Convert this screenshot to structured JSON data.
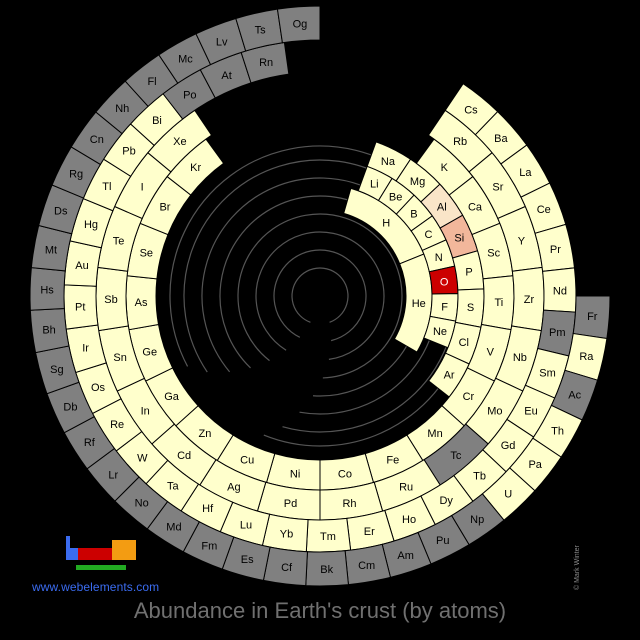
{
  "title": "Abundance in Earth's crust (by atoms)",
  "site": "www.webelements.com",
  "credit": "© Mark Winter",
  "colors": {
    "background": "#000000",
    "present": "#ffffcc",
    "absent": "#808080",
    "highlight_high": "#cc0000",
    "highlight_mid": "#f2b79b",
    "highlight_low": "#fae5c8",
    "cell_border": "#000000"
  },
  "chart_data": {
    "type": "spiral-periodic-table",
    "elements": [
      {
        "s": "H",
        "c": "present"
      },
      {
        "s": "He",
        "c": "present"
      },
      {
        "s": "Li",
        "c": "present"
      },
      {
        "s": "Be",
        "c": "present"
      },
      {
        "s": "B",
        "c": "present"
      },
      {
        "s": "C",
        "c": "present"
      },
      {
        "s": "N",
        "c": "present"
      },
      {
        "s": "O",
        "c": "high"
      },
      {
        "s": "F",
        "c": "present"
      },
      {
        "s": "Ne",
        "c": "present"
      },
      {
        "s": "Na",
        "c": "present"
      },
      {
        "s": "Mg",
        "c": "present"
      },
      {
        "s": "Al",
        "c": "low"
      },
      {
        "s": "Si",
        "c": "mid"
      },
      {
        "s": "P",
        "c": "present"
      },
      {
        "s": "S",
        "c": "present"
      },
      {
        "s": "Cl",
        "c": "present"
      },
      {
        "s": "Ar",
        "c": "present"
      },
      {
        "s": "K",
        "c": "present"
      },
      {
        "s": "Ca",
        "c": "present"
      },
      {
        "s": "Sc",
        "c": "present"
      },
      {
        "s": "Ti",
        "c": "present"
      },
      {
        "s": "V",
        "c": "present"
      },
      {
        "s": "Cr",
        "c": "present"
      },
      {
        "s": "Mn",
        "c": "present"
      },
      {
        "s": "Fe",
        "c": "present"
      },
      {
        "s": "Co",
        "c": "present"
      },
      {
        "s": "Ni",
        "c": "present"
      },
      {
        "s": "Cu",
        "c": "present"
      },
      {
        "s": "Zn",
        "c": "present"
      },
      {
        "s": "Ga",
        "c": "present"
      },
      {
        "s": "Ge",
        "c": "present"
      },
      {
        "s": "As",
        "c": "present"
      },
      {
        "s": "Se",
        "c": "present"
      },
      {
        "s": "Br",
        "c": "present"
      },
      {
        "s": "Kr",
        "c": "present"
      },
      {
        "s": "Rb",
        "c": "present"
      },
      {
        "s": "Sr",
        "c": "present"
      },
      {
        "s": "Y",
        "c": "present"
      },
      {
        "s": "Zr",
        "c": "present"
      },
      {
        "s": "Nb",
        "c": "present"
      },
      {
        "s": "Mo",
        "c": "present"
      },
      {
        "s": "Tc",
        "c": "absent"
      },
      {
        "s": "Ru",
        "c": "present"
      },
      {
        "s": "Rh",
        "c": "present"
      },
      {
        "s": "Pd",
        "c": "present"
      },
      {
        "s": "Ag",
        "c": "present"
      },
      {
        "s": "Cd",
        "c": "present"
      },
      {
        "s": "In",
        "c": "present"
      },
      {
        "s": "Sn",
        "c": "present"
      },
      {
        "s": "Sb",
        "c": "present"
      },
      {
        "s": "Te",
        "c": "present"
      },
      {
        "s": "I",
        "c": "present"
      },
      {
        "s": "Xe",
        "c": "present"
      },
      {
        "s": "Cs",
        "c": "present"
      },
      {
        "s": "Ba",
        "c": "present"
      },
      {
        "s": "La",
        "c": "present"
      },
      {
        "s": "Ce",
        "c": "present"
      },
      {
        "s": "Pr",
        "c": "present"
      },
      {
        "s": "Nd",
        "c": "present"
      },
      {
        "s": "Pm",
        "c": "absent"
      },
      {
        "s": "Sm",
        "c": "present"
      },
      {
        "s": "Eu",
        "c": "present"
      },
      {
        "s": "Gd",
        "c": "present"
      },
      {
        "s": "Tb",
        "c": "present"
      },
      {
        "s": "Dy",
        "c": "present"
      },
      {
        "s": "Ho",
        "c": "present"
      },
      {
        "s": "Er",
        "c": "present"
      },
      {
        "s": "Tm",
        "c": "present"
      },
      {
        "s": "Yb",
        "c": "present"
      },
      {
        "s": "Lu",
        "c": "present"
      },
      {
        "s": "Hf",
        "c": "present"
      },
      {
        "s": "Ta",
        "c": "present"
      },
      {
        "s": "W",
        "c": "present"
      },
      {
        "s": "Re",
        "c": "present"
      },
      {
        "s": "Os",
        "c": "present"
      },
      {
        "s": "Ir",
        "c": "present"
      },
      {
        "s": "Pt",
        "c": "present"
      },
      {
        "s": "Au",
        "c": "present"
      },
      {
        "s": "Hg",
        "c": "present"
      },
      {
        "s": "Tl",
        "c": "present"
      },
      {
        "s": "Pb",
        "c": "present"
      },
      {
        "s": "Bi",
        "c": "present"
      },
      {
        "s": "Po",
        "c": "absent"
      },
      {
        "s": "At",
        "c": "absent"
      },
      {
        "s": "Rn",
        "c": "absent"
      },
      {
        "s": "Fr",
        "c": "absent"
      },
      {
        "s": "Ra",
        "c": "present"
      },
      {
        "s": "Ac",
        "c": "absent"
      },
      {
        "s": "Th",
        "c": "present"
      },
      {
        "s": "Pa",
        "c": "present"
      },
      {
        "s": "U",
        "c": "present"
      },
      {
        "s": "Np",
        "c": "absent"
      },
      {
        "s": "Pu",
        "c": "absent"
      },
      {
        "s": "Am",
        "c": "absent"
      },
      {
        "s": "Cm",
        "c": "absent"
      },
      {
        "s": "Bk",
        "c": "absent"
      },
      {
        "s": "Cf",
        "c": "absent"
      },
      {
        "s": "Es",
        "c": "absent"
      },
      {
        "s": "Fm",
        "c": "absent"
      },
      {
        "s": "Md",
        "c": "absent"
      },
      {
        "s": "No",
        "c": "absent"
      },
      {
        "s": "Lr",
        "c": "absent"
      },
      {
        "s": "Rf",
        "c": "absent"
      },
      {
        "s": "Db",
        "c": "absent"
      },
      {
        "s": "Sg",
        "c": "absent"
      },
      {
        "s": "Bh",
        "c": "absent"
      },
      {
        "s": "Hs",
        "c": "absent"
      },
      {
        "s": "Mt",
        "c": "absent"
      },
      {
        "s": "Ds",
        "c": "absent"
      },
      {
        "s": "Rg",
        "c": "absent"
      },
      {
        "s": "Cn",
        "c": "absent"
      },
      {
        "s": "Nh",
        "c": "absent"
      },
      {
        "s": "Fl",
        "c": "absent"
      },
      {
        "s": "Mc",
        "c": "absent"
      },
      {
        "s": "Lv",
        "c": "absent"
      },
      {
        "s": "Ts",
        "c": "absent"
      },
      {
        "s": "Og",
        "c": "absent"
      }
    ]
  }
}
